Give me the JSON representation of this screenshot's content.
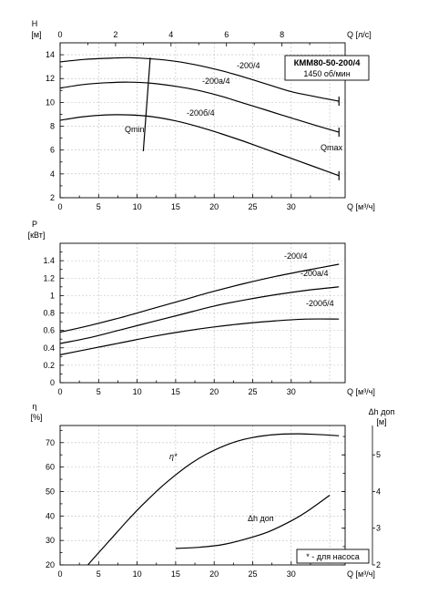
{
  "chart_data": [
    {
      "id": "head",
      "type": "line",
      "title_box": [
        "КММ80-50-200/4",
        "1450 об/мин"
      ],
      "ylabel": "H",
      "yunit": "[м]",
      "xlabel": "Q [м³/ч]",
      "x2label": "Q [л/с]",
      "xlim": [
        0,
        37
      ],
      "ylim": [
        2,
        15
      ],
      "x2lim": [
        0,
        10.278
      ],
      "xticks": [
        0,
        5,
        10,
        15,
        20,
        25,
        30
      ],
      "yticks": [
        2,
        4,
        6,
        8,
        10,
        12,
        14
      ],
      "x2ticks": [
        0,
        2,
        4,
        6,
        8
      ],
      "grid": true,
      "series": [
        {
          "name": "-200/4",
          "x": [
            0,
            3,
            6,
            9,
            12,
            15,
            18,
            21,
            24,
            27,
            30,
            33,
            36.2
          ],
          "y": [
            13.4,
            13.6,
            13.7,
            13.75,
            13.65,
            13.45,
            13.1,
            12.65,
            12.1,
            11.5,
            10.9,
            10.5,
            10.1
          ]
        },
        {
          "name": "-200a/4",
          "x": [
            0,
            3,
            6,
            9,
            12,
            15,
            18,
            21,
            24,
            27,
            30,
            33,
            36.2
          ],
          "y": [
            11.2,
            11.5,
            11.65,
            11.7,
            11.6,
            11.35,
            11.0,
            10.5,
            9.9,
            9.3,
            8.7,
            8.1,
            7.5
          ]
        },
        {
          "name": "-200б/4",
          "x": [
            0,
            3,
            6,
            9,
            12,
            15,
            18,
            21,
            24,
            27,
            30,
            33,
            36.2
          ],
          "y": [
            8.5,
            8.8,
            8.95,
            8.95,
            8.8,
            8.45,
            7.95,
            7.35,
            6.7,
            6.0,
            5.3,
            4.6,
            3.85
          ]
        }
      ],
      "annotations": [
        "Qmin",
        "Qmax"
      ],
      "qmin_line": {
        "x": [
          10.8,
          11.7
        ],
        "y": [
          5.9,
          13.75
        ]
      }
    },
    {
      "id": "power",
      "type": "line",
      "ylabel": "P",
      "yunit": "[кВт]",
      "xlabel": "Q [м³/ч]",
      "xlim": [
        0,
        37
      ],
      "ylim": [
        0,
        1.6
      ],
      "xticks": [
        0,
        5,
        10,
        15,
        20,
        25,
        30
      ],
      "yticks": [
        0,
        0.2,
        0.4,
        0.6,
        0.8,
        1,
        1.2,
        1.4
      ],
      "grid": true,
      "series": [
        {
          "name": "-200/4",
          "x": [
            0,
            4,
            8,
            12,
            16,
            20,
            24,
            28,
            32,
            36.2
          ],
          "y": [
            0.58,
            0.66,
            0.75,
            0.85,
            0.95,
            1.05,
            1.14,
            1.22,
            1.29,
            1.36
          ]
        },
        {
          "name": "-200a/4",
          "x": [
            0,
            4,
            8,
            12,
            16,
            20,
            24,
            28,
            32,
            36.2
          ],
          "y": [
            0.45,
            0.52,
            0.61,
            0.7,
            0.79,
            0.88,
            0.95,
            1.01,
            1.06,
            1.1
          ]
        },
        {
          "name": "-200б/4",
          "x": [
            0,
            4,
            8,
            12,
            16,
            20,
            24,
            28,
            32,
            36.2
          ],
          "y": [
            0.32,
            0.39,
            0.46,
            0.53,
            0.59,
            0.64,
            0.68,
            0.71,
            0.73,
            0.73
          ]
        }
      ]
    },
    {
      "id": "efficiency",
      "type": "line",
      "ylabel": "η",
      "yunit": "[%]",
      "y2label": "Δh доп",
      "y2unit": "[м]",
      "xlabel": "Q [м³/ч]",
      "xlim": [
        0,
        37
      ],
      "ylim": [
        20,
        77
      ],
      "y2lim": [
        2,
        5.8
      ],
      "xticks": [
        0,
        5,
        10,
        15,
        20,
        25,
        30
      ],
      "yticks": [
        20,
        30,
        40,
        50,
        60,
        70
      ],
      "y2ticks": [
        2,
        3,
        4,
        5
      ],
      "grid": true,
      "legend_note": "* - для насоса",
      "series": [
        {
          "name": "η*",
          "axis": "left",
          "x": [
            3.6,
            5,
            7,
            9,
            11,
            13,
            15,
            17,
            19,
            21,
            23,
            25,
            27,
            29,
            31,
            33,
            36.2
          ],
          "y": [
            20,
            25,
            32,
            39,
            45.5,
            51.5,
            56.8,
            61.5,
            65.3,
            68.3,
            70.6,
            72.1,
            73.0,
            73.5,
            73.6,
            73.4,
            72.8
          ]
        },
        {
          "name": "Δh доп",
          "axis": "right",
          "x": [
            15,
            18,
            21,
            24,
            27,
            30,
            32,
            35
          ],
          "y": [
            2.45,
            2.48,
            2.55,
            2.7,
            2.9,
            3.2,
            3.45,
            3.9
          ]
        }
      ]
    }
  ]
}
